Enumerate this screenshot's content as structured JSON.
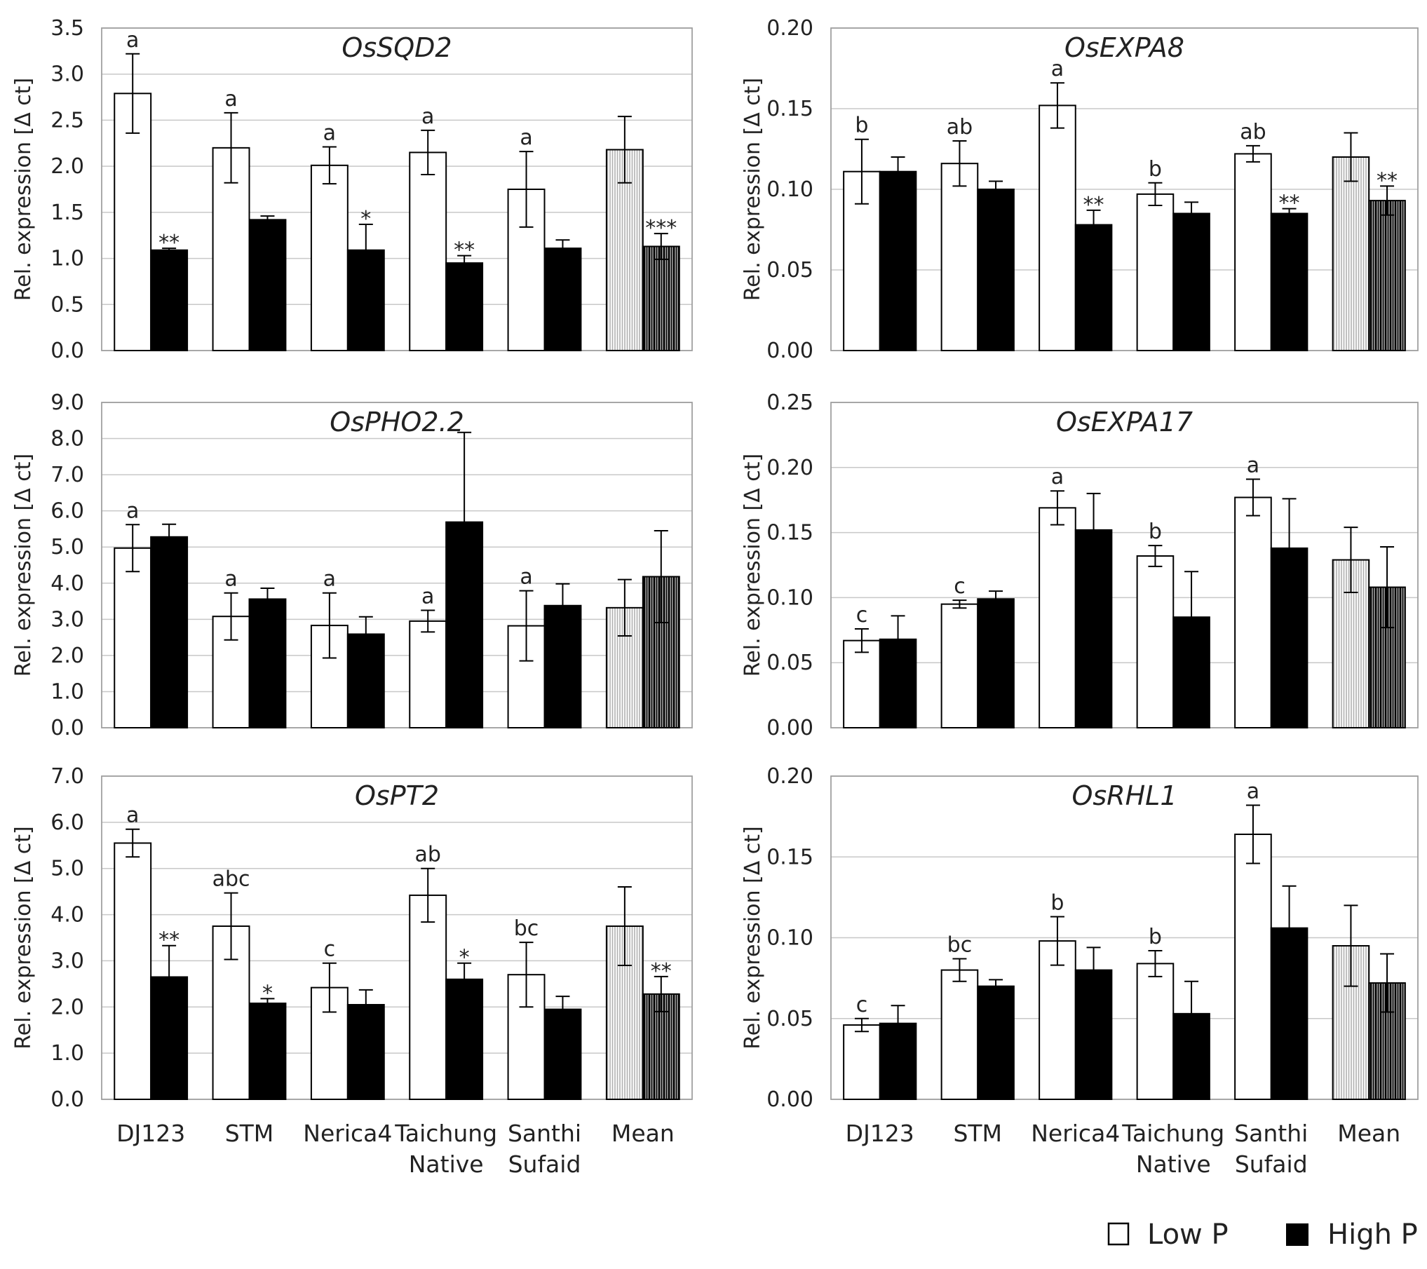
{
  "figure": {
    "categories": [
      [
        "DJ123"
      ],
      [
        "STM"
      ],
      [
        "Nerica4"
      ],
      [
        "Taichung",
        "Native"
      ],
      [
        "Santhi",
        "Sufaid"
      ],
      [
        "Mean"
      ]
    ],
    "legend": {
      "low": "Low P",
      "high": "High P"
    },
    "colors": {
      "low": "#ffffff",
      "high": "#000000",
      "stroke": "#000000",
      "grid": "#c8c8c8",
      "frame": "#a0a0a0"
    }
  },
  "chart_data": [
    {
      "type": "bar",
      "title": "OsSQD2",
      "ylabel": "Rel. expression [Δ ct]",
      "ylim": [
        0,
        3.5
      ],
      "yticks": [
        "0.0",
        "0.5",
        "1.0",
        "1.5",
        "2.0",
        "2.5",
        "3.0",
        "3.5"
      ],
      "series": [
        {
          "name": "Low P",
          "values": [
            2.79,
            2.2,
            2.01,
            2.15,
            1.75,
            2.18
          ],
          "errors": [
            0.43,
            0.38,
            0.2,
            0.24,
            0.41,
            0.36
          ],
          "labels": [
            "a",
            "a",
            "a",
            "a",
            "a",
            ""
          ]
        },
        {
          "name": "High P",
          "values": [
            1.09,
            1.42,
            1.09,
            0.95,
            1.11,
            1.13
          ],
          "errors": [
            0.02,
            0.04,
            0.28,
            0.08,
            0.09,
            0.14
          ],
          "labels": [
            "**",
            "",
            "*",
            "**",
            "",
            "***"
          ]
        }
      ]
    },
    {
      "type": "bar",
      "title": "OsEXPA8",
      "ylabel": "Rel. expression [Δ ct]",
      "ylim": [
        0,
        0.2
      ],
      "yticks": [
        "0.00",
        "0.05",
        "0.10",
        "0.15",
        "0.20"
      ],
      "series": [
        {
          "name": "Low P",
          "values": [
            0.111,
            0.116,
            0.152,
            0.097,
            0.122,
            0.12
          ],
          "errors": [
            0.02,
            0.014,
            0.014,
            0.007,
            0.005,
            0.015
          ],
          "labels": [
            "b",
            "ab",
            "a",
            "b",
            "ab",
            ""
          ]
        },
        {
          "name": "High P",
          "values": [
            0.111,
            0.1,
            0.078,
            0.085,
            0.085,
            0.093
          ],
          "errors": [
            0.009,
            0.005,
            0.009,
            0.007,
            0.003,
            0.009
          ],
          "labels": [
            "",
            "",
            "**",
            "",
            "**",
            "**"
          ]
        }
      ]
    },
    {
      "type": "bar",
      "title": "OsPHO2.2",
      "ylabel": "Rel. expression [Δ ct]",
      "ylim": [
        0,
        9.0
      ],
      "yticks": [
        "0.0",
        "1.0",
        "2.0",
        "3.0",
        "4.0",
        "5.0",
        "6.0",
        "7.0",
        "8.0",
        "9.0"
      ],
      "series": [
        {
          "name": "Low P",
          "values": [
            4.97,
            3.08,
            2.83,
            2.95,
            2.82,
            3.32
          ],
          "errors": [
            0.65,
            0.65,
            0.9,
            0.3,
            0.97,
            0.78
          ],
          "labels": [
            "a",
            "a",
            "a",
            "a",
            "a",
            ""
          ]
        },
        {
          "name": "High P",
          "values": [
            5.28,
            3.56,
            2.59,
            5.69,
            3.38,
            4.18
          ],
          "errors": [
            0.35,
            0.3,
            0.48,
            2.48,
            0.6,
            1.27
          ],
          "labels": [
            "",
            "",
            "",
            "",
            "",
            ""
          ]
        }
      ]
    },
    {
      "type": "bar",
      "title": "OsEXPA17",
      "ylabel": "Rel. expression [Δ ct]",
      "ylim": [
        0,
        0.25
      ],
      "yticks": [
        "0.00",
        "0.05",
        "0.10",
        "0.15",
        "0.20",
        "0.25"
      ],
      "series": [
        {
          "name": "Low P",
          "values": [
            0.067,
            0.095,
            0.169,
            0.132,
            0.177,
            0.129
          ],
          "errors": [
            0.009,
            0.003,
            0.013,
            0.008,
            0.014,
            0.025
          ],
          "labels": [
            "c",
            "c",
            "a",
            "b",
            "a",
            ""
          ]
        },
        {
          "name": "High P",
          "values": [
            0.068,
            0.099,
            0.152,
            0.085,
            0.138,
            0.108
          ],
          "errors": [
            0.018,
            0.006,
            0.028,
            0.035,
            0.038,
            0.031
          ],
          "labels": [
            "",
            "",
            "",
            "",
            "",
            ""
          ]
        }
      ]
    },
    {
      "type": "bar",
      "title": "OsPT2",
      "ylabel": "Rel. expression [Δ ct]",
      "ylim": [
        0,
        7.0
      ],
      "yticks": [
        "0.0",
        "1.0",
        "2.0",
        "3.0",
        "4.0",
        "5.0",
        "6.0",
        "7.0"
      ],
      "series": [
        {
          "name": "Low P",
          "values": [
            5.55,
            3.75,
            2.42,
            4.42,
            2.7,
            3.75
          ],
          "errors": [
            0.3,
            0.72,
            0.53,
            0.58,
            0.7,
            0.85
          ],
          "labels": [
            "a",
            "abc",
            "c",
            "ab",
            "bc",
            ""
          ]
        },
        {
          "name": "High P",
          "values": [
            2.65,
            2.08,
            2.05,
            2.6,
            1.95,
            2.28
          ],
          "errors": [
            0.68,
            0.1,
            0.32,
            0.35,
            0.28,
            0.38
          ],
          "labels": [
            "**",
            "*",
            "",
            "*",
            "",
            "**"
          ]
        }
      ]
    },
    {
      "type": "bar",
      "title": "OsRHL1",
      "ylabel": "Rel. expression [Δ ct]",
      "ylim": [
        0,
        0.2
      ],
      "yticks": [
        "0.00",
        "0.05",
        "0.10",
        "0.15",
        "0.20"
      ],
      "series": [
        {
          "name": "Low P",
          "values": [
            0.046,
            0.08,
            0.098,
            0.084,
            0.164,
            0.095
          ],
          "errors": [
            0.004,
            0.007,
            0.015,
            0.008,
            0.018,
            0.025
          ],
          "labels": [
            "c",
            "bc",
            "b",
            "b",
            "a",
            ""
          ]
        },
        {
          "name": "High P",
          "values": [
            0.047,
            0.07,
            0.08,
            0.053,
            0.106,
            0.072
          ],
          "errors": [
            0.011,
            0.004,
            0.014,
            0.02,
            0.026,
            0.018
          ],
          "labels": [
            "",
            "",
            "",
            "",
            "",
            ""
          ]
        }
      ]
    }
  ]
}
